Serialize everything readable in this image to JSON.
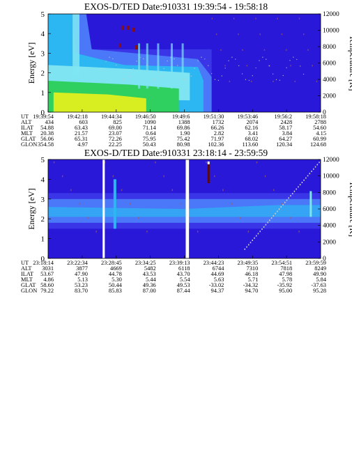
{
  "chart_data": [
    {
      "type": "heatmap",
      "title": "EXOS-D/TED   Date:910331  19:39:54 - 19:58:18",
      "ylabel": "Energy [eV]",
      "y2label": "Temperature [K]",
      "ylim": [
        0,
        5
      ],
      "y2lim": [
        0,
        12000
      ],
      "yticks": [
        "0",
        "1",
        "2",
        "3",
        "4",
        "5"
      ],
      "y2ticks": [
        "0",
        "2000",
        "4000",
        "6000",
        "8000",
        "10000",
        "12000"
      ],
      "x_ticks_ut": [
        "19:39:54",
        "19:42:18",
        "19:44:34",
        "19:46:50",
        "19:49:6",
        "19:51:30",
        "19:53:46",
        "19:56:2",
        "19:58:18"
      ],
      "table": {
        "rows": [
          {
            "label": "UT",
            "values": [
              "19:39:54",
              "19:42:18",
              "19:44:34",
              "19:46:50",
              "19:49:6",
              "19:51:30",
              "19:53:46",
              "19:56:2",
              "19:58:18"
            ]
          },
          {
            "label": "ALT",
            "values": [
              "434",
              "603",
              "825",
              "1090",
              "1388",
              "1732",
              "2074",
              "2428",
              "2788"
            ]
          },
          {
            "label": "ILAT",
            "values": [
              "54.88",
              "63.43",
              "69.00",
              "71.14",
              "69.86",
              "66.26",
              "62.16",
              "58.17",
              "54.60"
            ]
          },
          {
            "label": "MLT",
            "values": [
              "20.38",
              "21.57",
              "23.07",
              "0.64",
              "1.90",
              "2.82",
              "3.41",
              "3.84",
              "4.15"
            ]
          },
          {
            "label": "GLAT",
            "values": [
              "56.06",
              "65.31",
              "72.26",
              "75.95",
              "75.42",
              "71.97",
              "68.02",
              "64.27",
              "60.99"
            ]
          },
          {
            "label": "GLON",
            "values": [
              "354.58",
              "4.97",
              "22.25",
              "50.43",
              "80.98",
              "102.36",
              "113.60",
              "120.34",
              "124.68"
            ]
          }
        ]
      }
    },
    {
      "type": "heatmap",
      "title": "EXOS-D/TED   Date:910331  23:18:14 - 23:59:59",
      "ylabel": "Energy [eV]",
      "y2label": "Temperature [K]",
      "ylim": [
        0,
        5
      ],
      "y2lim": [
        0,
        12000
      ],
      "yticks": [
        "0",
        "1",
        "2",
        "3",
        "4",
        "5"
      ],
      "y2ticks": [
        "0",
        "2000",
        "4000",
        "6000",
        "8000",
        "10000",
        "12000"
      ],
      "x_ticks_ut": [
        "23:18:14",
        "23:22:34",
        "23:28:45",
        "23:34:25",
        "23:39:13",
        "23:44:23",
        "23:49:35",
        "23:54:51",
        "23:59:59"
      ],
      "table": {
        "rows": [
          {
            "label": "UT",
            "values": [
              "23:18:14",
              "23:22:34",
              "23:28:45",
              "23:34:25",
              "23:39:13",
              "23:44:23",
              "23:49:35",
              "23:54:51",
              "23:59:59"
            ]
          },
          {
            "label": "ALT",
            "values": [
              "3031",
              "3877",
              "4669",
              "5482",
              "6118",
              "6744",
              "7310",
              "7818",
              "8249"
            ]
          },
          {
            "label": "ILAT",
            "values": [
              "53.67",
              "47.90",
              "44.78",
              "43.53",
              "43.70",
              "44.69",
              "46.18",
              "47.98",
              "49.90"
            ]
          },
          {
            "label": "MLT",
            "values": [
              "4.86",
              "5.13",
              "5.30",
              "5.44",
              "5.54",
              "5.63",
              "5.71",
              "5.78",
              "5.84"
            ]
          },
          {
            "label": "GLAT",
            "values": [
              "58.60",
              "53.23",
              "50.44",
              "49.36",
              "49.53",
              "-33.02",
              "-34.32",
              "-35.92",
              "-37.63"
            ]
          },
          {
            "label": "GLON",
            "values": [
              "79.22",
              "83.70",
              "85.83",
              "87.00",
              "87.44",
              "94.37",
              "94.70",
              "95.00",
              "95.28"
            ]
          }
        ]
      }
    }
  ],
  "colors": {
    "background_dark": "#2a18d8",
    "background_mid": "#3a36e8",
    "band_light": "#4a78f8",
    "band_cyan": "#2cb6f2",
    "band_lightcyan": "#7ee4f2",
    "band_green": "#30d060",
    "band_yellow": "#d8ee20",
    "gap": "#ffffff"
  }
}
